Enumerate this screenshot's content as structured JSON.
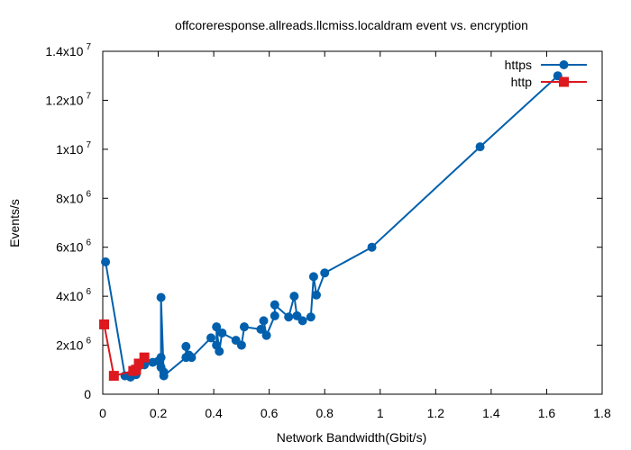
{
  "chart_data": {
    "type": "line",
    "title": "offcoreresponse.allreads.llcmiss.localdram event vs. encryption",
    "xlabel": "Network Bandwidth(Gbit/s)",
    "ylabel": "Events/s",
    "xlim": [
      0,
      1.8
    ],
    "ylim": [
      0,
      14000000
    ],
    "x_ticks": [
      {
        "value": 0,
        "label": "0"
      },
      {
        "value": 0.2,
        "label": "0.2"
      },
      {
        "value": 0.4,
        "label": "0.4"
      },
      {
        "value": 0.6,
        "label": "0.6"
      },
      {
        "value": 0.8,
        "label": "0.8"
      },
      {
        "value": 1.0,
        "label": "1"
      },
      {
        "value": 1.2,
        "label": "1.2"
      },
      {
        "value": 1.4,
        "label": "1.4"
      },
      {
        "value": 1.6,
        "label": "1.6"
      },
      {
        "value": 1.8,
        "label": "1.8"
      }
    ],
    "y_ticks": [
      {
        "value": 0,
        "mantissa": "0",
        "exp": ""
      },
      {
        "value": 2000000,
        "mantissa": "2x10",
        "exp": "6"
      },
      {
        "value": 4000000,
        "mantissa": "4x10",
        "exp": "6"
      },
      {
        "value": 6000000,
        "mantissa": "6x10",
        "exp": "6"
      },
      {
        "value": 8000000,
        "mantissa": "8x10",
        "exp": "6"
      },
      {
        "value": 10000000,
        "mantissa": "1x10",
        "exp": "7"
      },
      {
        "value": 12000000,
        "mantissa": "1.2x10",
        "exp": "7"
      },
      {
        "value": 14000000,
        "mantissa": "1.4x10",
        "exp": "7"
      }
    ],
    "grid": false,
    "legend_position": "top-right",
    "series": [
      {
        "name": "https",
        "color": "#0060ad",
        "marker": "circle",
        "points": [
          [
            0.01,
            5400000
          ],
          [
            0.08,
            750000
          ],
          [
            0.1,
            700000
          ],
          [
            0.12,
            800000
          ],
          [
            0.15,
            1200000
          ],
          [
            0.18,
            1300000
          ],
          [
            0.2,
            1350000
          ],
          [
            0.21,
            1100000
          ],
          [
            0.22,
            900000
          ],
          [
            0.21,
            1500000
          ],
          [
            0.21,
            3950000
          ],
          [
            0.22,
            750000
          ],
          [
            0.3,
            1500000
          ],
          [
            0.3,
            1950000
          ],
          [
            0.31,
            1600000
          ],
          [
            0.32,
            1500000
          ],
          [
            0.39,
            2300000
          ],
          [
            0.41,
            2000000
          ],
          [
            0.41,
            2750000
          ],
          [
            0.42,
            1750000
          ],
          [
            0.43,
            2500000
          ],
          [
            0.48,
            2200000
          ],
          [
            0.5,
            2000000
          ],
          [
            0.51,
            2750000
          ],
          [
            0.57,
            2650000
          ],
          [
            0.58,
            3000000
          ],
          [
            0.59,
            2400000
          ],
          [
            0.62,
            3200000
          ],
          [
            0.62,
            3650000
          ],
          [
            0.67,
            3150000
          ],
          [
            0.69,
            4000000
          ],
          [
            0.7,
            3200000
          ],
          [
            0.72,
            3000000
          ],
          [
            0.75,
            3150000
          ],
          [
            0.76,
            4800000
          ],
          [
            0.77,
            4050000
          ],
          [
            0.8,
            4950000
          ],
          [
            0.97,
            6000000
          ],
          [
            1.36,
            10100000
          ],
          [
            1.64,
            13000000
          ]
        ]
      },
      {
        "name": "http",
        "color": "#dd181f",
        "marker": "square",
        "points": [
          [
            0.005,
            2850000
          ],
          [
            0.04,
            750000
          ],
          [
            0.11,
            950000
          ],
          [
            0.12,
            1000000
          ],
          [
            0.13,
            1250000
          ],
          [
            0.15,
            1500000
          ]
        ]
      }
    ]
  }
}
